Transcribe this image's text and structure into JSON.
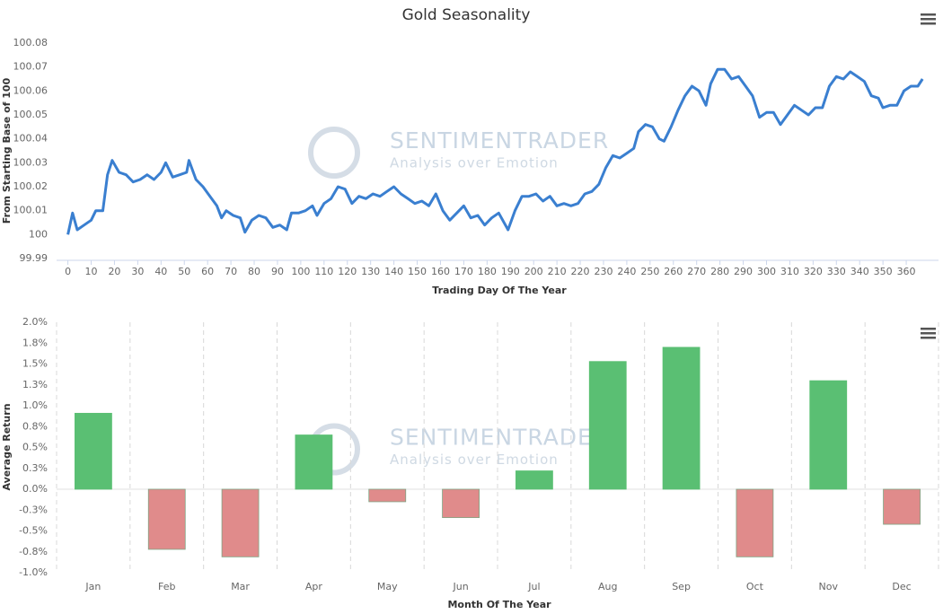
{
  "chart_data": [
    {
      "type": "line",
      "title": "Gold Seasonality",
      "y_label": "From Starting Base of 100",
      "x_label": "Trading Day Of The Year",
      "watermark_title": "SENTIMENTRADER",
      "watermark_subtitle": "Analysis over Emotion",
      "color": "#3a7fd0",
      "x": [
        0,
        2,
        4,
        7,
        10,
        12,
        15,
        17,
        19,
        22,
        25,
        28,
        31,
        34,
        37,
        40,
        42,
        45,
        48,
        51,
        52,
        55,
        58,
        61,
        64,
        66,
        68,
        71,
        74,
        76,
        79,
        82,
        85,
        88,
        91,
        94,
        96,
        99,
        102,
        105,
        107,
        110,
        113,
        116,
        119,
        122,
        125,
        128,
        131,
        134,
        137,
        140,
        143,
        146,
        149,
        152,
        155,
        158,
        161,
        164,
        167,
        170,
        173,
        176,
        179,
        182,
        185,
        189,
        192,
        195,
        198,
        201,
        204,
        207,
        210,
        213,
        216,
        219,
        222,
        225,
        228,
        231,
        234,
        237,
        240,
        243,
        245,
        248,
        251,
        254,
        256,
        259,
        262,
        265,
        268,
        271,
        274,
        276,
        279,
        282,
        285,
        288,
        291,
        294,
        297,
        300,
        303,
        306,
        309,
        312,
        315,
        318,
        321,
        324,
        327,
        330,
        333,
        336,
        339,
        342,
        345,
        348,
        350,
        353,
        356,
        359,
        362,
        365,
        367
      ],
      "values": [
        100.0,
        100.009,
        100.002,
        100.004,
        100.006,
        100.01,
        100.01,
        100.025,
        100.031,
        100.026,
        100.025,
        100.022,
        100.023,
        100.025,
        100.023,
        100.026,
        100.03,
        100.024,
        100.025,
        100.026,
        100.031,
        100.023,
        100.02,
        100.016,
        100.012,
        100.007,
        100.01,
        100.008,
        100.007,
        100.001,
        100.006,
        100.008,
        100.007,
        100.003,
        100.004,
        100.002,
        100.009,
        100.009,
        100.01,
        100.012,
        100.008,
        100.013,
        100.015,
        100.02,
        100.019,
        100.013,
        100.016,
        100.015,
        100.017,
        100.016,
        100.018,
        100.02,
        100.017,
        100.015,
        100.013,
        100.014,
        100.012,
        100.017,
        100.01,
        100.006,
        100.009,
        100.012,
        100.007,
        100.008,
        100.004,
        100.007,
        100.009,
        100.002,
        100.01,
        100.016,
        100.016,
        100.017,
        100.014,
        100.016,
        100.012,
        100.013,
        100.012,
        100.013,
        100.017,
        100.018,
        100.021,
        100.028,
        100.033,
        100.032,
        100.034,
        100.036,
        100.043,
        100.046,
        100.045,
        100.04,
        100.039,
        100.045,
        100.052,
        100.058,
        100.062,
        100.06,
        100.054,
        100.063,
        100.069,
        100.069,
        100.065,
        100.066,
        100.062,
        100.058,
        100.049,
        100.051,
        100.051,
        100.046,
        100.05,
        100.054,
        100.052,
        100.05,
        100.053,
        100.053,
        100.062,
        100.066,
        100.065,
        100.068,
        100.066,
        100.064,
        100.058,
        100.057,
        100.053,
        100.054,
        100.054,
        100.06,
        100.062,
        100.062,
        100.065
      ],
      "xlim": [
        -1,
        370
      ],
      "xticks": [
        0,
        10,
        20,
        30,
        40,
        50,
        60,
        70,
        80,
        90,
        100,
        110,
        120,
        130,
        140,
        150,
        160,
        170,
        180,
        190,
        200,
        210,
        220,
        230,
        240,
        250,
        260,
        270,
        280,
        290,
        300,
        310,
        320,
        330,
        340,
        350,
        360
      ],
      "ylim": [
        99.99,
        100.08
      ],
      "yticks": [
        99.99,
        100,
        100.01,
        100.02,
        100.03,
        100.04,
        100.05,
        100.06,
        100.07,
        100.08
      ]
    },
    {
      "type": "bar",
      "y_label": "Average Return",
      "x_label": "Month Of The Year",
      "watermark_title": "SENTIMENTRADER",
      "watermark_subtitle": "Analysis over Emotion",
      "positive_color": "#5abf73",
      "negative_color": "#e08b8b",
      "categories": [
        "Jan",
        "Feb",
        "Mar",
        "Apr",
        "May",
        "Jun",
        "Jul",
        "Aug",
        "Sep",
        "Oct",
        "Nov",
        "Dec"
      ],
      "values": [
        0.91,
        -0.72,
        -0.81,
        0.65,
        -0.15,
        -0.34,
        0.22,
        1.53,
        1.7,
        -0.81,
        1.3,
        -0.42
      ],
      "ylim": [
        -1,
        2
      ],
      "yticks": [
        {
          "value": -1,
          "label": "-1.0%"
        },
        {
          "value": -0.75,
          "label": "-0.8%"
        },
        {
          "value": -0.5,
          "label": "-0.5%"
        },
        {
          "value": -0.25,
          "label": "-0.3%"
        },
        {
          "value": 0,
          "label": "0.0%"
        },
        {
          "value": 0.25,
          "label": "0.3%"
        },
        {
          "value": 0.5,
          "label": "0.5%"
        },
        {
          "value": 0.75,
          "label": "0.8%"
        },
        {
          "value": 1,
          "label": "1.0%"
        },
        {
          "value": 1.25,
          "label": "1.3%"
        },
        {
          "value": 1.5,
          "label": "1.5%"
        },
        {
          "value": 1.75,
          "label": "1.8%"
        },
        {
          "value": 2,
          "label": "2.0%"
        }
      ]
    }
  ]
}
